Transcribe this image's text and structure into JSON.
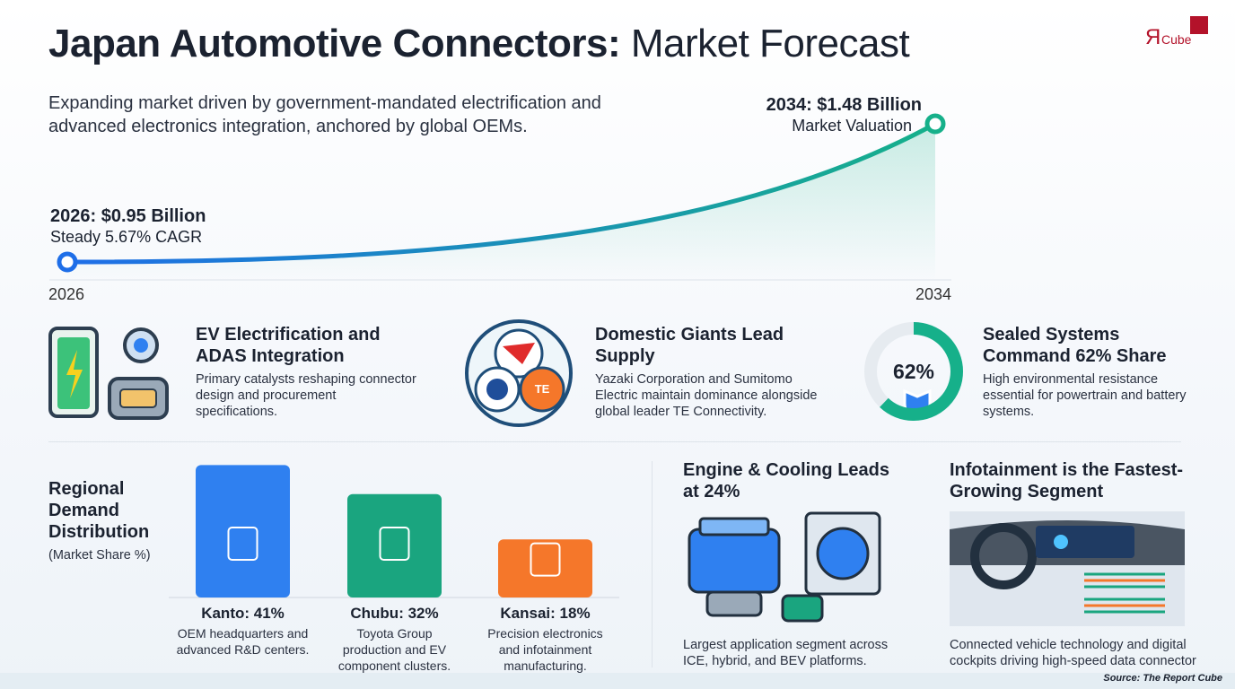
{
  "header": {
    "title_bold": "Japan Automotive Connectors:",
    "title_light": "Market Forecast",
    "subtitle": "Expanding market driven by government-mandated electrification and advanced electronics integration, anchored by global OEMs.",
    "logo": "Cube",
    "logo_mark": "Я"
  },
  "forecast": {
    "start_label": "2026: $0.95 Billion",
    "start_note": "Steady 5.67% CAGR",
    "end_label": "2034: $1.48 Billion",
    "end_note": "Market Valuation",
    "start_year": "2026",
    "end_year": "2034"
  },
  "highlights": [
    {
      "title": "EV Electrification and ADAS Integration",
      "text": "Primary catalysts reshaping connector design and procurement specifications."
    },
    {
      "title": "Domestic Giants Lead Supply",
      "text": "Yazaki Corporation and Sumitomo Electric maintain dominance alongside global leader TE Connectivity.",
      "badge": "TE"
    },
    {
      "title": "Sealed Systems Command 62% Share",
      "text": "High environmental resistance essential for powertrain and battery systems.",
      "value": 62,
      "value_label": "62%"
    }
  ],
  "regional": {
    "title": "Regional Demand Distribution",
    "unit": "(Market Share %)",
    "bars": [
      {
        "label": "Kanto: 41%",
        "value": 41,
        "text": "OEM headquarters and advanced R&D centers.",
        "color": "#2f80f0"
      },
      {
        "label": "Chubu: 32%",
        "value": 32,
        "text": "Toyota Group production and EV component clusters.",
        "color": "#1aa57f"
      },
      {
        "label": "Kansai: 18%",
        "value": 18,
        "text": "Precision electronics and infotainment manufacturing.",
        "color": "#f5772a"
      }
    ]
  },
  "segments": [
    {
      "title": "Engine & Cooling Leads at 24%",
      "text": "Largest application segment across ICE, hybrid, and BEV platforms."
    },
    {
      "title": "Infotainment is the Fastest-Growing Segment",
      "text": "Connected vehicle technology and digital cockpits driving high-speed data connector"
    }
  ],
  "source": "Source: The Report Cube"
}
